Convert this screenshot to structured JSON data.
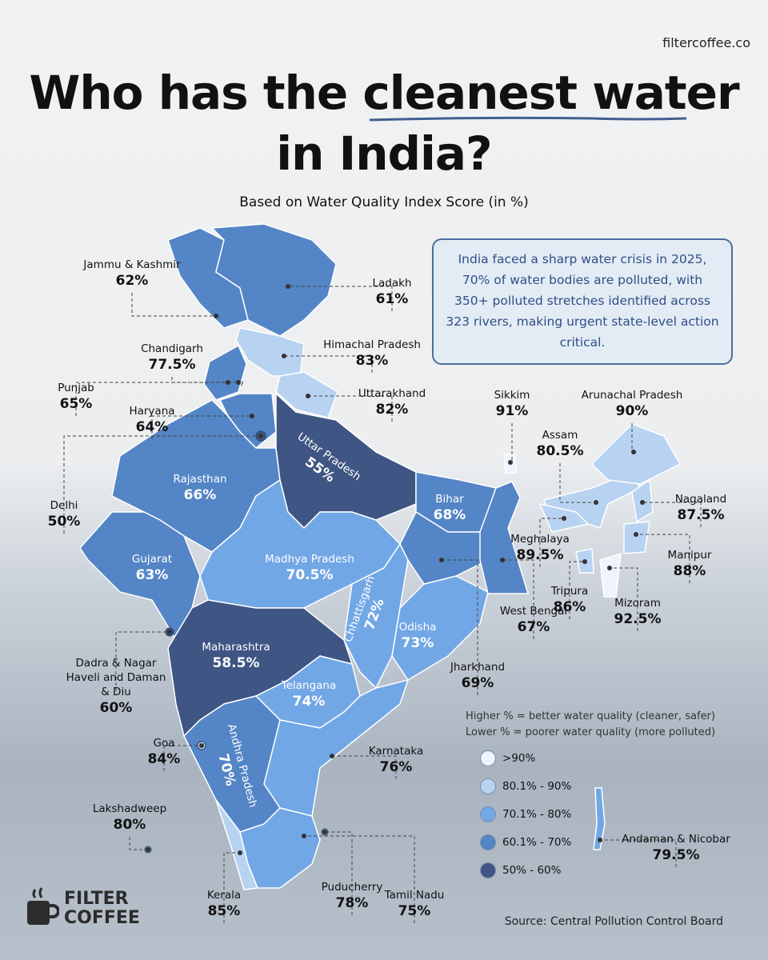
{
  "brand": "filtercoffee.co",
  "header": {
    "title_lead": "Who has the",
    "title_highlight": "cleanest water",
    "title_end": "in India?",
    "subtitle": "Based on Water Quality Index Score (in %)"
  },
  "callout": "India faced a sharp water crisis in 2025, 70% of water bodies are polluted, with 350+ polluted stretches identified across 323 rivers, making urgent state-level action critical.",
  "states": [
    {
      "name": "Jammu & Kashmir",
      "value": 62,
      "value_label": "62%",
      "color": "#5485c6"
    },
    {
      "name": "Ladakh",
      "value": 61,
      "value_label": "61%",
      "color": "#5485c6"
    },
    {
      "name": "Himachal Pradesh",
      "value": 83,
      "value_label": "83%",
      "color": "#b8d3f1"
    },
    {
      "name": "Chandigarh",
      "value": 77.5,
      "value_label": "77.5%",
      "color": "#72a7e6"
    },
    {
      "name": "Punjab",
      "value": 65,
      "value_label": "65%",
      "color": "#5485c6"
    },
    {
      "name": "Haryana",
      "value": 64,
      "value_label": "64%",
      "color": "#5485c6"
    },
    {
      "name": "Uttarakhand",
      "value": 82,
      "value_label": "82%",
      "color": "#b8d3f1"
    },
    {
      "name": "Delhi",
      "value": 50,
      "value_label": "50%",
      "color": "#3f5583"
    },
    {
      "name": "Rajasthan",
      "value": 66,
      "value_label": "66%",
      "color": "#5485c6"
    },
    {
      "name": "Uttar Pradesh",
      "value": 55,
      "value_label": "55%",
      "color": "#3f5583"
    },
    {
      "name": "Bihar",
      "value": 68,
      "value_label": "68%",
      "color": "#5485c6"
    },
    {
      "name": "Gujarat",
      "value": 63,
      "value_label": "63%",
      "color": "#5485c6"
    },
    {
      "name": "Madhya Pradesh",
      "value": 70.5,
      "value_label": "70.5%",
      "color": "#72a7e6"
    },
    {
      "name": "Chhattisgarh",
      "value": 72,
      "value_label": "72%",
      "color": "#72a7e6"
    },
    {
      "name": "Odisha",
      "value": 73,
      "value_label": "73%",
      "color": "#72a7e6"
    },
    {
      "name": "Maharashtra",
      "value": 58.5,
      "value_label": "58.5%",
      "color": "#3f5583"
    },
    {
      "name": "Telangana",
      "value": 74,
      "value_label": "74%",
      "color": "#72a7e6"
    },
    {
      "name": "Karnataka",
      "value": 76,
      "value_label": "76%",
      "color": "#72a7e6"
    },
    {
      "name": "Andhra Pradesh",
      "value": 70,
      "value_label": "70%",
      "color": "#5485c6"
    },
    {
      "name": "Goa",
      "value": 84,
      "value_label": "84%",
      "color": "#b8d3f1"
    },
    {
      "name": "Dadra & Nagar Haveli and Daman & Diu",
      "value": 60,
      "value_label": "60%",
      "color": "#3f5583"
    },
    {
      "name": "Lakshadweep",
      "value": 80,
      "value_label": "80%",
      "color": "#72a7e6"
    },
    {
      "name": "Kerala",
      "value": 85,
      "value_label": "85%",
      "color": "#b8d3f1"
    },
    {
      "name": "Puducherry",
      "value": 78,
      "value_label": "78%",
      "color": "#72a7e6"
    },
    {
      "name": "Tamil Nadu",
      "value": 75,
      "value_label": "75%",
      "color": "#72a7e6"
    },
    {
      "name": "Jharkhand",
      "value": 69,
      "value_label": "69%",
      "color": "#5485c6"
    },
    {
      "name": "West Bengal",
      "value": 67,
      "value_label": "67%",
      "color": "#5485c6"
    },
    {
      "name": "Sikkim",
      "value": 91,
      "value_label": "91%",
      "color": "#eef4fb"
    },
    {
      "name": "Assam",
      "value": 80.5,
      "value_label": "80.5%",
      "color": "#b8d3f1"
    },
    {
      "name": "Arunachal Pradesh",
      "value": 90,
      "value_label": "90%",
      "color": "#b8d3f1"
    },
    {
      "name": "Nagaland",
      "value": 87.5,
      "value_label": "87.5%",
      "color": "#b8d3f1"
    },
    {
      "name": "Meghalaya",
      "value": 89.5,
      "value_label": "89.5%",
      "color": "#b8d3f1"
    },
    {
      "name": "Manipur",
      "value": 88,
      "value_label": "88%",
      "color": "#b8d3f1"
    },
    {
      "name": "Tripura",
      "value": 86,
      "value_label": "86%",
      "color": "#b8d3f1"
    },
    {
      "name": "Mizoram",
      "value": 92.5,
      "value_label": "92.5%",
      "color": "#eef4fb"
    },
    {
      "name": "Andaman & Nicobar",
      "value": 79.5,
      "value_label": "79.5%",
      "color": "#72a7e6"
    }
  ],
  "legend": {
    "notes": [
      "Higher % = better water quality (cleaner, safer)",
      "Lower % = poorer water quality (more polluted)"
    ],
    "items": [
      {
        "label": ">90%",
        "color": "#eef4fb"
      },
      {
        "label": "80.1% - 90%",
        "color": "#b8d3f1"
      },
      {
        "label": "70.1% - 80%",
        "color": "#72a7e6"
      },
      {
        "label": "60.1% - 70%",
        "color": "#5485c6"
      },
      {
        "label": "50% - 60%",
        "color": "#3f5583"
      }
    ]
  },
  "source": "Source: Central Pollution Control Board",
  "logo": [
    "FILTER",
    "COFFEE"
  ]
}
